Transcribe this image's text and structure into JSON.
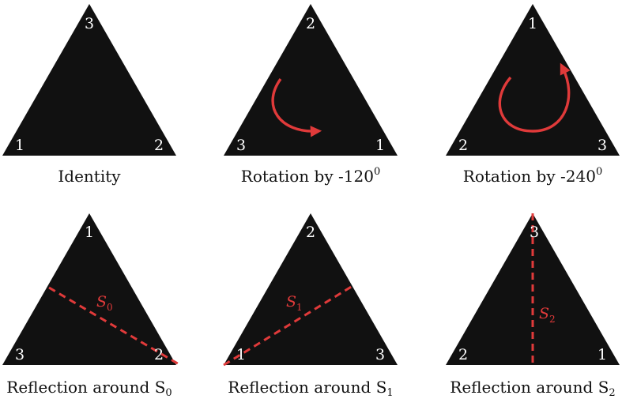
{
  "colors": {
    "triangle": "#111111",
    "accent": "#e03a3a",
    "vertex_text": "#ffffff",
    "caption_text": "#111111"
  },
  "panels": [
    {
      "id": "identity",
      "vertices": {
        "top": "3",
        "left": "1",
        "right": "2"
      },
      "caption": {
        "text": "Identity",
        "sup": "",
        "sub": ""
      },
      "marker": {
        "type": "none"
      }
    },
    {
      "id": "rotation-120",
      "vertices": {
        "top": "2",
        "left": "3",
        "right": "1"
      },
      "caption": {
        "text": "Rotation by -120",
        "sup": "0",
        "sub": ""
      },
      "marker": {
        "type": "rotation",
        "icon": "curved-arrow-icon"
      }
    },
    {
      "id": "rotation-240",
      "vertices": {
        "top": "1",
        "left": "2",
        "right": "3"
      },
      "caption": {
        "text": "Rotation by -240",
        "sup": "0",
        "sub": ""
      },
      "marker": {
        "type": "rotation",
        "icon": "circular-arrow-icon"
      }
    },
    {
      "id": "reflection-s0",
      "vertices": {
        "top": "1",
        "left": "3",
        "right": "2"
      },
      "caption": {
        "text": "Reflection around S",
        "sup": "",
        "sub": "0"
      },
      "marker": {
        "type": "reflection",
        "axis_letter": "S",
        "axis_sub": "0"
      }
    },
    {
      "id": "reflection-s1",
      "vertices": {
        "top": "2",
        "left": "1",
        "right": "3"
      },
      "caption": {
        "text": "Reflection around S",
        "sup": "",
        "sub": "1"
      },
      "marker": {
        "type": "reflection",
        "axis_letter": "S",
        "axis_sub": "1"
      }
    },
    {
      "id": "reflection-s2",
      "vertices": {
        "top": "3",
        "left": "2",
        "right": "1"
      },
      "caption": {
        "text": "Reflection around S",
        "sup": "",
        "sub": "2"
      },
      "marker": {
        "type": "reflection",
        "axis_letter": "S",
        "axis_sub": "2"
      }
    }
  ]
}
